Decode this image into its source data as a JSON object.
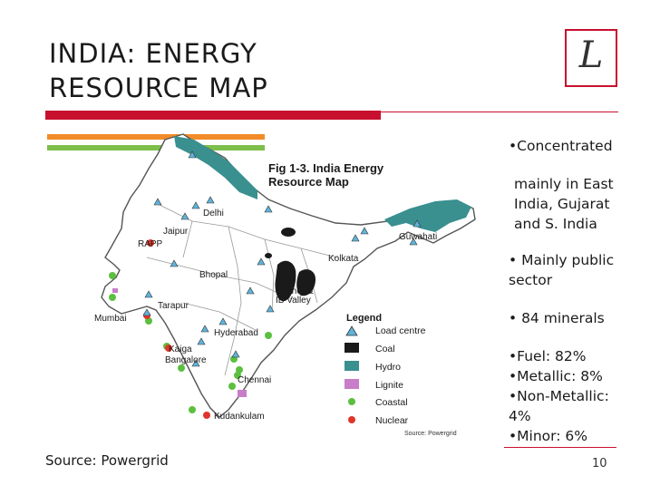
{
  "slide": {
    "title_line1": "INDIA: ENERGY",
    "title_line2": "RESOURCE MAP",
    "logo_letter": "L",
    "source": "Source: Powergrid",
    "page_number": "10"
  },
  "bullets": [
    "•Concentrated",
    "mainly in East",
    "India, Gujarat",
    "and S. India",
    "• Mainly public",
    "sector",
    "• 84 minerals",
    "•Fuel: 82%",
    "•Metallic: 8%",
    "•Non-Metallic:",
    "4%",
    "•Minor: 6%"
  ],
  "map": {
    "fig_title_line1": "Fig 1-3. India Energy",
    "fig_title_line2": "Resource Map",
    "credit": "Source: Powergrid",
    "cities": [
      "Delhi",
      "Jaipur",
      "RAPP",
      "Guwahati",
      "Kolkata",
      "Bhopal",
      "Talcher &",
      "IB Valley",
      "Tarapur",
      "Mumbai",
      "Hyderabad",
      "Kaiga",
      "Bangalore",
      "Chennai",
      "Kudankulam"
    ],
    "legend": {
      "title": "Legend",
      "items": [
        "Load centre",
        "Coal",
        "Hydro",
        "Lignite",
        "Coastal",
        "Nuclear"
      ]
    },
    "colors": {
      "hydro": "#3a8f8f",
      "coal": "#1a1a1a",
      "lignite": "#c77dc7",
      "coastal": "#5bbf3f",
      "nuclear": "#e0352b",
      "load_centre": "#5fb3d9",
      "accent_red": "#c8102e",
      "stripe_orange": "#f28c28",
      "stripe_green": "#7dbf4a"
    }
  }
}
